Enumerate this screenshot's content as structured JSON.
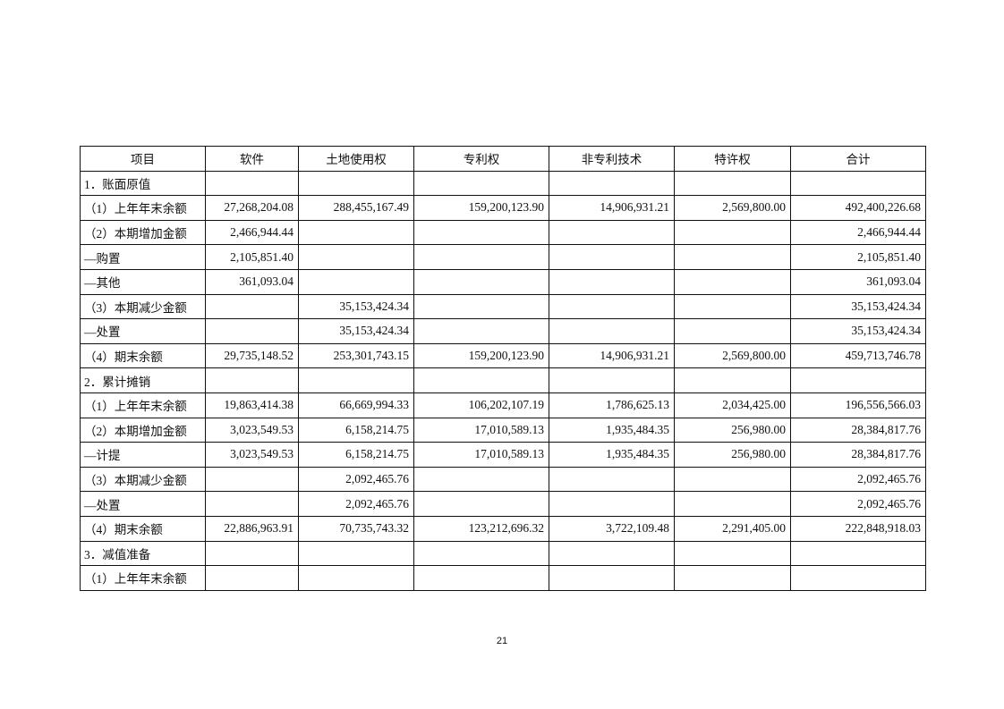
{
  "table": {
    "headers": [
      "项目",
      "软件",
      "土地使用权",
      "专利权",
      "非专利技术",
      "特许权",
      "合计"
    ],
    "rows": [
      [
        "1．账面原值",
        "",
        "",
        "",
        "",
        "",
        ""
      ],
      [
        "（1）上年年末余额",
        "27,268,204.08",
        "288,455,167.49",
        "159,200,123.90",
        "14,906,931.21",
        "2,569,800.00",
        "492,400,226.68"
      ],
      [
        "（2）本期增加金额",
        "2,466,944.44",
        "",
        "",
        "",
        "",
        "2,466,944.44"
      ],
      [
        "—购置",
        "2,105,851.40",
        "",
        "",
        "",
        "",
        "2,105,851.40"
      ],
      [
        "—其他",
        "361,093.04",
        "",
        "",
        "",
        "",
        "361,093.04"
      ],
      [
        "（3）本期减少金额",
        "",
        "35,153,424.34",
        "",
        "",
        "",
        "35,153,424.34"
      ],
      [
        "—处置",
        "",
        "35,153,424.34",
        "",
        "",
        "",
        "35,153,424.34"
      ],
      [
        "（4）期末余额",
        "29,735,148.52",
        "253,301,743.15",
        "159,200,123.90",
        "14,906,931.21",
        "2,569,800.00",
        "459,713,746.78"
      ],
      [
        "2．累计摊销",
        "",
        "",
        "",
        "",
        "",
        ""
      ],
      [
        "（1）上年年末余额",
        "19,863,414.38",
        "66,669,994.33",
        "106,202,107.19",
        "1,786,625.13",
        "2,034,425.00",
        "196,556,566.03"
      ],
      [
        "（2）本期增加金额",
        "3,023,549.53",
        "6,158,214.75",
        "17,010,589.13",
        "1,935,484.35",
        "256,980.00",
        "28,384,817.76"
      ],
      [
        "—计提",
        "3,023,549.53",
        "6,158,214.75",
        "17,010,589.13",
        "1,935,484.35",
        "256,980.00",
        "28,384,817.76"
      ],
      [
        "（3）本期减少金额",
        "",
        "2,092,465.76",
        "",
        "",
        "",
        "2,092,465.76"
      ],
      [
        "—处置",
        "",
        "2,092,465.76",
        "",
        "",
        "",
        "2,092,465.76"
      ],
      [
        "（4）期末余额",
        "22,886,963.91",
        "70,735,743.32",
        "123,212,696.32",
        "3,722,109.48",
        "2,291,405.00",
        "222,848,918.03"
      ],
      [
        "3．减值准备",
        "",
        "",
        "",
        "",
        "",
        ""
      ],
      [
        "（1）上年年末余额",
        "",
        "",
        "",
        "",
        "",
        ""
      ]
    ]
  },
  "page_number": "21"
}
